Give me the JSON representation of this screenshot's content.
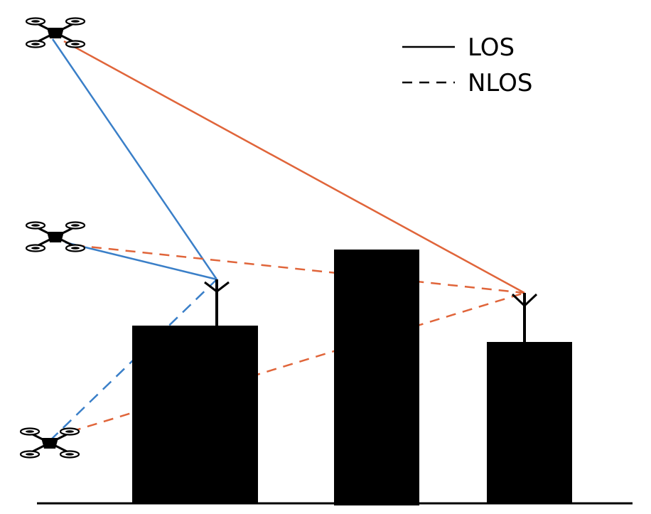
{
  "legend": {
    "items": [
      {
        "label": "LOS",
        "style": "solid"
      },
      {
        "label": "NLOS",
        "style": "dashed"
      }
    ]
  },
  "colors": {
    "blue_link": "#3a7fc8",
    "orange_link": "#e0653a",
    "building": "#000000",
    "ground": "#000000",
    "background": "#ffffff"
  },
  "icons": {
    "uav": "quadcopter-drone-icon",
    "base_station": "antenna-icon"
  },
  "links": [
    {
      "from": "uav-top",
      "to": "bs-left",
      "color": "blue",
      "type": "LOS"
    },
    {
      "from": "uav-top",
      "to": "bs-right",
      "color": "orange",
      "type": "LOS"
    },
    {
      "from": "uav-middle",
      "to": "bs-left",
      "color": "blue",
      "type": "LOS"
    },
    {
      "from": "uav-middle",
      "to": "bs-right",
      "color": "orange",
      "type": "NLOS"
    },
    {
      "from": "uav-bottom",
      "to": "bs-left",
      "color": "blue",
      "type": "NLOS"
    },
    {
      "from": "uav-bottom",
      "to": "bs-right",
      "color": "orange",
      "type": "NLOS"
    }
  ]
}
